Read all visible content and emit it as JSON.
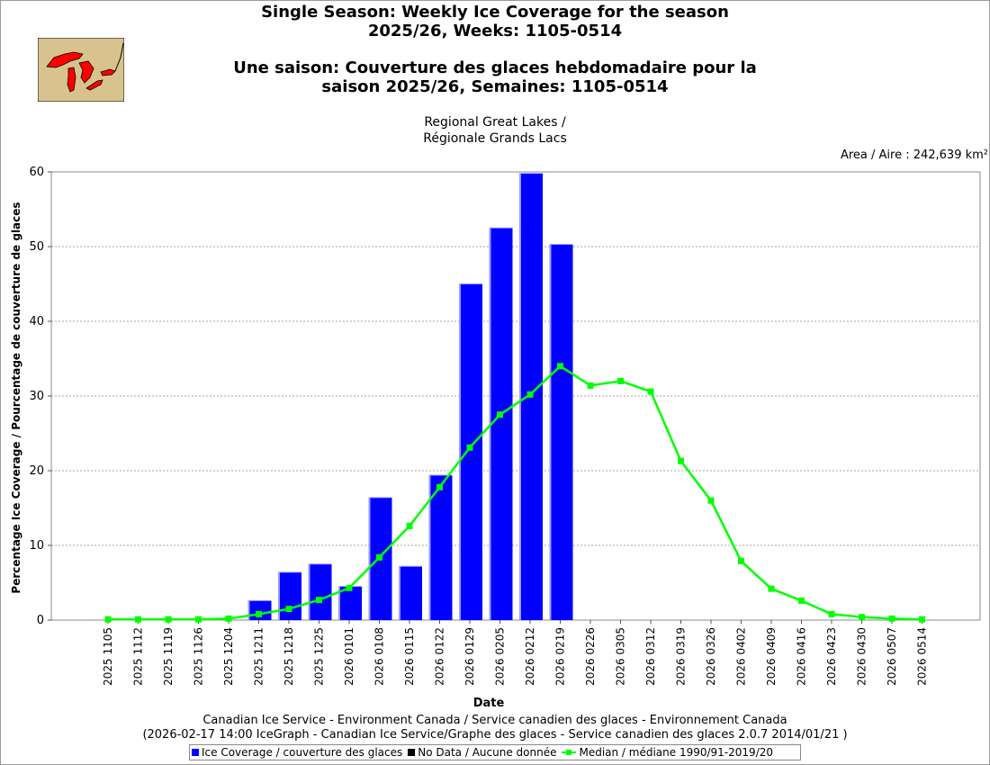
{
  "header": {
    "title_en_line1": "Single Season: Weekly Ice Coverage for the season",
    "title_en_line2": "2025/26, Weeks: 1105-0514",
    "title_fr_line1": "Une saison: Couverture des glaces hebdomadaire pour la",
    "title_fr_line2": "saison 2025/26, Semaines: 1105-0514",
    "region_line1": "Regional Great Lakes /",
    "region_line2": "Régionale Grands Lacs",
    "area": "Area / Aire : 242,639 km²"
  },
  "footer": {
    "credit_line1": "Canadian Ice Service - Environment Canada / Service canadien des glaces - Environnement Canada",
    "credit_line2": "(2026-02-17 14:00 IceGraph - Canadian Ice Service/Graphe des glaces - Service canadien des glaces 2.0.7 2014/01/21 )"
  },
  "legend": {
    "ice": "Ice Coverage / couverture des glaces",
    "nodata": "No Data / Aucune donnée",
    "median": "Median / médiane 1990/91-2019/20"
  },
  "colors": {
    "ice": "#0000ff",
    "nodata": "#000000",
    "median": "#00ff00",
    "map_land": "#d8c38e",
    "map_lakes": "#ff0000"
  },
  "chart_data": {
    "type": "bar",
    "xlabel": "Date",
    "ylabel": "Percentage Ice Coverage / Pourcentage de couverture de glaces",
    "ylim": [
      0,
      60
    ],
    "yticks": [
      0,
      10,
      20,
      30,
      40,
      50,
      60
    ],
    "grid": true,
    "legend_position": "bottom",
    "categories": [
      "2025 1105",
      "2025 1112",
      "2025 1119",
      "2025 1126",
      "2025 1204",
      "2025 1211",
      "2025 1218",
      "2025 1225",
      "2026 0101",
      "2026 0108",
      "2026 0115",
      "2026 0122",
      "2026 0129",
      "2026 0205",
      "2026 0212",
      "2026 0219",
      "2026 0226",
      "2026 0305",
      "2026 0312",
      "2026 0319",
      "2026 0326",
      "2026 0402",
      "2026 0409",
      "2026 0416",
      "2026 0423",
      "2026 0430",
      "2026 0507",
      "2026 0514"
    ],
    "series": [
      {
        "name": "Ice Coverage / couverture des glaces",
        "type": "bar",
        "values": [
          0,
          0,
          0,
          0,
          0,
          2.6,
          6.4,
          7.5,
          4.5,
          16.4,
          7.2,
          19.4,
          45.0,
          52.5,
          59.8,
          50.3,
          null,
          null,
          null,
          null,
          null,
          null,
          null,
          null,
          null,
          null,
          null,
          null
        ]
      },
      {
        "name": "Median / médiane 1990/91-2019/20",
        "type": "line",
        "values": [
          0.1,
          0.1,
          0.1,
          0.1,
          0.2,
          0.8,
          1.5,
          2.7,
          4.3,
          8.4,
          12.6,
          17.8,
          23.1,
          27.5,
          30.2,
          34.0,
          31.4,
          32.0,
          30.6,
          21.3,
          16.0,
          7.9,
          4.2,
          2.6,
          0.8,
          0.4,
          0.2,
          0.1
        ]
      }
    ]
  }
}
